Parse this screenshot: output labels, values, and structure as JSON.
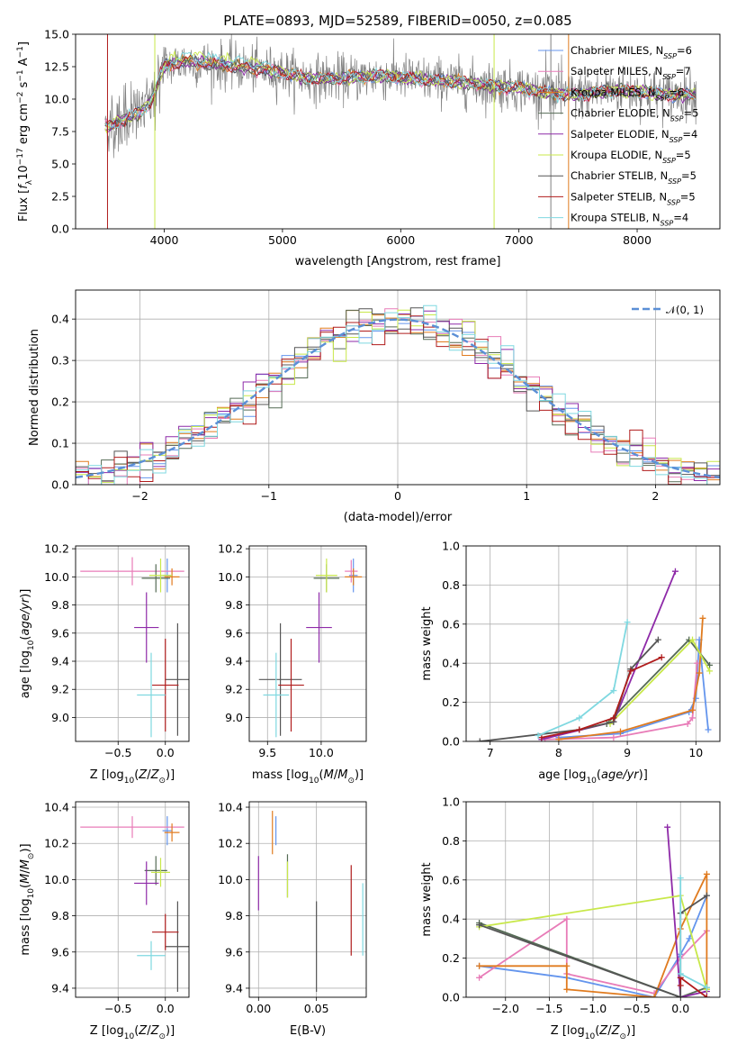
{
  "figure_title": "PLATE=0893, MJD=52589, FIBERID=0050, z=0.085",
  "colors": {
    "Chabrier MILES": "#6495ed",
    "Salpeter MILES": "#e87cb8",
    "Kroupa MILES": "#e07b1f",
    "Chabrier ELODIE": "#556b55",
    "Salpeter ELODIE": "#8e2aa8",
    "Kroupa ELODIE": "#c8e84a",
    "Chabrier STELIB": "#555555",
    "Salpeter STELIB": "#b01c1c",
    "Kroupa STELIB": "#7fd8e0",
    "data": "#808080",
    "normal": "#5b8fd6"
  },
  "chart_data": [
    {
      "id": "spectrum",
      "type": "line",
      "title": "PLATE=0893, MJD=52589, FIBERID=0050, z=0.085",
      "xlabel": "wavelength [Angstrom, rest frame]",
      "ylabel": "Flux [f_λ 10^-17 erg cm^-2 s^-1 A^-1]",
      "xlim": [
        3250,
        8700
      ],
      "ylim": [
        0,
        15
      ],
      "xticks": [
        "4000",
        "5000",
        "6000",
        "7000",
        "8000"
      ],
      "yticks": [
        "0.0",
        "2.5",
        "5.0",
        "7.5",
        "10.0",
        "12.5",
        "15.0"
      ],
      "legend_position": "right",
      "legend": [
        {
          "model": "Chabrier MILES",
          "label": "Chabrier MILES, N",
          "nssp": "=6"
        },
        {
          "model": "Salpeter MILES",
          "label": "Salpeter MILES, N",
          "nssp": "=7"
        },
        {
          "model": "Kroupa MILES",
          "label": "Kroupa MILES, N",
          "nssp": "=6"
        },
        {
          "model": "Chabrier ELODIE",
          "label": "Chabrier ELODIE, N",
          "nssp": "=5"
        },
        {
          "model": "Salpeter ELODIE",
          "label": "Salpeter ELODIE, N",
          "nssp": "=4"
        },
        {
          "model": "Kroupa ELODIE",
          "label": "Kroupa ELODIE, N",
          "nssp": "=5"
        },
        {
          "model": "Chabrier STELIB",
          "label": "Chabrier STELIB, N",
          "nssp": "=5"
        },
        {
          "model": "Salpeter STELIB",
          "label": "Salpeter STELIB, N",
          "nssp": "=5"
        },
        {
          "model": "Kroupa STELIB",
          "label": "Kroupa STELIB, N",
          "nssp": "=4"
        }
      ],
      "continuum_points": [
        [
          3500,
          7.8
        ],
        [
          3600,
          8.2
        ],
        [
          3700,
          8.6
        ],
        [
          3800,
          9.0
        ],
        [
          3900,
          10.0
        ],
        [
          4000,
          12.6
        ],
        [
          4200,
          12.9
        ],
        [
          4500,
          12.6
        ],
        [
          4800,
          12.3
        ],
        [
          5000,
          12.1
        ],
        [
          5200,
          11.6
        ],
        [
          5500,
          11.6
        ],
        [
          5800,
          11.8
        ],
        [
          6000,
          11.7
        ],
        [
          6200,
          11.5
        ],
        [
          6500,
          11.3
        ],
        [
          6800,
          11.0
        ],
        [
          7000,
          10.9
        ],
        [
          7200,
          10.5
        ],
        [
          7500,
          10.3
        ],
        [
          7800,
          10.7
        ],
        [
          8000,
          10.6
        ],
        [
          8300,
          10.3
        ],
        [
          8500,
          10.4
        ]
      ]
    },
    {
      "id": "residuals",
      "type": "histogram",
      "xlabel": "(data-model)/error",
      "ylabel": "Normed distribution",
      "xlim": [
        -2.5,
        2.5
      ],
      "ylim": [
        0,
        0.47
      ],
      "xticks": [
        "−2",
        "−1",
        "0",
        "1",
        "2"
      ],
      "yticks": [
        "0.0",
        "0.1",
        "0.2",
        "0.3",
        "0.4"
      ],
      "legend": [
        {
          "label": "𝒩(0, 1)",
          "style": "dashed"
        }
      ],
      "legend_position": "top-right",
      "bin_width": 0.1
    },
    {
      "id": "age_vs_Z",
      "type": "errorbar",
      "xlabel": "Z [log10(Z/Z⊙)]",
      "ylabel": "age  [log10(age/yr)]",
      "xlim": [
        -0.95,
        0.25
      ],
      "ylim": [
        8.83,
        10.22
      ],
      "xticks": [
        "−0.5",
        "0.0"
      ],
      "yticks": [
        "9.0",
        "9.2",
        "9.4",
        "9.6",
        "9.8",
        "10.0",
        "10.2"
      ],
      "points": [
        {
          "model": "Chabrier MILES",
          "x": 0.02,
          "y": 10.01,
          "xerr": 0.05,
          "yerr": 0.12
        },
        {
          "model": "Salpeter MILES",
          "x": -0.35,
          "y": 10.04,
          "xerr": 0.55,
          "yerr": 0.1
        },
        {
          "model": "Kroupa MILES",
          "x": 0.07,
          "y": 10.0,
          "xerr": 0.08,
          "yerr": 0.06
        },
        {
          "model": "Chabrier ELODIE",
          "x": -0.1,
          "y": 9.99,
          "xerr": 0.15,
          "yerr": 0.1
        },
        {
          "model": "Salpeter ELODIE",
          "x": -0.2,
          "y": 9.64,
          "xerr": 0.13,
          "yerr": 0.25
        },
        {
          "model": "Kroupa ELODIE",
          "x": -0.05,
          "y": 10.01,
          "xerr": 0.12,
          "yerr": 0.12
        },
        {
          "model": "Chabrier STELIB",
          "x": 0.13,
          "y": 9.27,
          "xerr": 0.13,
          "yerr": 0.4
        },
        {
          "model": "Salpeter STELIB",
          "x": 0.0,
          "y": 9.23,
          "xerr": 0.14,
          "yerr": 0.33
        },
        {
          "model": "Kroupa STELIB",
          "x": -0.15,
          "y": 9.16,
          "xerr": 0.15,
          "yerr": 0.3
        }
      ]
    },
    {
      "id": "age_vs_mass",
      "type": "errorbar",
      "xlabel": "mass [log10(M/M⊙)]",
      "ylabel": "",
      "xlim": [
        9.33,
        10.42
      ],
      "ylim": [
        8.83,
        10.22
      ],
      "xticks": [
        "9.5",
        "10.0"
      ],
      "yticks": [
        "9.0",
        "9.2",
        "9.4",
        "9.6",
        "9.8",
        "10.0",
        "10.2"
      ],
      "points": [
        {
          "model": "Chabrier MILES",
          "x": 10.3,
          "y": 10.01,
          "xerr": 0.04,
          "yerr": 0.12
        },
        {
          "model": "Salpeter MILES",
          "x": 10.28,
          "y": 10.04,
          "xerr": 0.06,
          "yerr": 0.08
        },
        {
          "model": "Kroupa MILES",
          "x": 10.3,
          "y": 10.0,
          "xerr": 0.08,
          "yerr": 0.06
        },
        {
          "model": "Chabrier ELODIE",
          "x": 10.05,
          "y": 9.99,
          "xerr": 0.12,
          "yerr": 0.1
        },
        {
          "model": "Salpeter ELODIE",
          "x": 9.98,
          "y": 9.64,
          "xerr": 0.12,
          "yerr": 0.25
        },
        {
          "model": "Kroupa ELODIE",
          "x": 10.05,
          "y": 10.01,
          "xerr": 0.1,
          "yerr": 0.12
        },
        {
          "model": "Chabrier STELIB",
          "x": 9.62,
          "y": 9.27,
          "xerr": 0.2,
          "yerr": 0.4
        },
        {
          "model": "Salpeter STELIB",
          "x": 9.72,
          "y": 9.23,
          "xerr": 0.12,
          "yerr": 0.33
        },
        {
          "model": "Kroupa STELIB",
          "x": 9.58,
          "y": 9.16,
          "xerr": 0.12,
          "yerr": 0.3
        }
      ]
    },
    {
      "id": "weight_vs_age",
      "type": "line",
      "xlabel": "age  [log10(age/yr)]",
      "ylabel": "mass weight",
      "xlim": [
        6.65,
        10.35
      ],
      "ylim": [
        0,
        1.0
      ],
      "xticks": [
        "7",
        "8",
        "9",
        "10"
      ],
      "yticks": [
        "0.0",
        "0.2",
        "0.4",
        "0.6",
        "0.8",
        "1.0"
      ],
      "series": [
        {
          "model": "Chabrier MILES",
          "x": [
            8.0,
            8.9,
            9.9,
            10.0,
            10.05,
            10.18
          ],
          "y": [
            0.02,
            0.04,
            0.15,
            0.22,
            0.52,
            0.06
          ]
        },
        {
          "model": "Salpeter MILES",
          "x": [
            7.8,
            8.8,
            9.88,
            9.95,
            10.02
          ],
          "y": [
            0.01,
            0.02,
            0.09,
            0.12,
            0.4
          ]
        },
        {
          "model": "Kroupa MILES",
          "x": [
            8.0,
            8.9,
            9.95,
            10.05,
            10.1
          ],
          "y": [
            0.01,
            0.05,
            0.16,
            0.35,
            0.63
          ]
        },
        {
          "model": "Chabrier ELODIE",
          "x": [
            8.7,
            9.9,
            10.2
          ],
          "y": [
            0.09,
            0.52,
            0.39
          ]
        },
        {
          "model": "Salpeter ELODIE",
          "x": [
            7.75,
            8.8,
            9.7
          ],
          "y": [
            0.01,
            0.1,
            0.87
          ]
        },
        {
          "model": "Kroupa ELODIE",
          "x": [
            8.75,
            9.95,
            10.2
          ],
          "y": [
            0.09,
            0.52,
            0.36
          ]
        },
        {
          "model": "Chabrier STELIB",
          "x": [
            6.85,
            8.3,
            8.8,
            9.05,
            9.45
          ],
          "y": [
            0.0,
            0.06,
            0.1,
            0.37,
            0.52
          ]
        },
        {
          "model": "Salpeter STELIB",
          "x": [
            7.75,
            8.3,
            8.8,
            9.05,
            9.5
          ],
          "y": [
            0.02,
            0.06,
            0.12,
            0.36,
            0.43
          ]
        },
        {
          "model": "Kroupa STELIB",
          "x": [
            7.7,
            8.3,
            8.8,
            9.0
          ],
          "y": [
            0.03,
            0.12,
            0.26,
            0.61
          ]
        }
      ]
    },
    {
      "id": "mass_vs_Z",
      "type": "errorbar",
      "xlabel": "Z [log10(Z/Z⊙)]",
      "ylabel": "mass [log10(M/M⊙)]",
      "xlim": [
        -0.95,
        0.25
      ],
      "ylim": [
        9.35,
        10.43
      ],
      "xticks": [
        "−0.5",
        "0.0"
      ],
      "yticks": [
        "9.4",
        "9.6",
        "9.8",
        "10.0",
        "10.2",
        "10.4"
      ],
      "points": [
        {
          "model": "Chabrier MILES",
          "x": 0.02,
          "y": 10.27,
          "xerr": 0.05,
          "yerr": 0.08
        },
        {
          "model": "Salpeter MILES",
          "x": -0.35,
          "y": 10.29,
          "xerr": 0.55,
          "yerr": 0.06
        },
        {
          "model": "Kroupa MILES",
          "x": 0.07,
          "y": 10.26,
          "xerr": 0.08,
          "yerr": 0.05
        },
        {
          "model": "Chabrier ELODIE",
          "x": -0.1,
          "y": 10.05,
          "xerr": 0.12,
          "yerr": 0.08
        },
        {
          "model": "Salpeter ELODIE",
          "x": -0.2,
          "y": 9.98,
          "xerr": 0.13,
          "yerr": 0.12
        },
        {
          "model": "Kroupa ELODIE",
          "x": -0.05,
          "y": 10.04,
          "xerr": 0.1,
          "yerr": 0.08
        },
        {
          "model": "Chabrier STELIB",
          "x": 0.13,
          "y": 9.63,
          "xerr": 0.13,
          "yerr": 0.25
        },
        {
          "model": "Salpeter STELIB",
          "x": 0.0,
          "y": 9.71,
          "xerr": 0.14,
          "yerr": 0.1
        },
        {
          "model": "Kroupa STELIB",
          "x": -0.15,
          "y": 9.58,
          "xerr": 0.15,
          "yerr": 0.08
        }
      ]
    },
    {
      "id": "mass_vs_ebv",
      "type": "errorbar",
      "xlabel": "E(B-V)",
      "ylabel": "",
      "xlim": [
        -0.008,
        0.093
      ],
      "ylim": [
        9.35,
        10.43
      ],
      "xticks": [
        "0.00",
        "0.05"
      ],
      "yticks": [
        "9.4",
        "9.6",
        "9.8",
        "10.0",
        "10.2",
        "10.4"
      ],
      "points": [
        {
          "model": "Chabrier MILES",
          "x": 0.015,
          "y": 10.27,
          "xerr": 0,
          "yerr": 0.08
        },
        {
          "model": "Kroupa MILES",
          "x": 0.012,
          "y": 10.26,
          "xerr": 0,
          "yerr": 0.12
        },
        {
          "model": "Chabrier ELODIE",
          "x": 0.025,
          "y": 10.02,
          "xerr": 0,
          "yerr": 0.12
        },
        {
          "model": "Salpeter ELODIE",
          "x": 0.0,
          "y": 9.98,
          "xerr": 0,
          "yerr": 0.15
        },
        {
          "model": "Kroupa ELODIE",
          "x": 0.025,
          "y": 10.0,
          "xerr": 0,
          "yerr": 0.1
        },
        {
          "model": "Chabrier STELIB",
          "x": 0.05,
          "y": 9.63,
          "xerr": 0,
          "yerr": 0.25
        },
        {
          "model": "Salpeter STELIB",
          "x": 0.08,
          "y": 9.83,
          "xerr": 0,
          "yerr": 0.25
        },
        {
          "model": "Kroupa STELIB",
          "x": 0.09,
          "y": 9.78,
          "xerr": 0,
          "yerr": 0.2
        }
      ]
    },
    {
      "id": "weight_vs_Z",
      "type": "line",
      "xlabel": "Z [log10(Z/Z⊙)]",
      "ylabel": "mass weight",
      "xlim": [
        -2.45,
        0.45
      ],
      "ylim": [
        0,
        1.0
      ],
      "xticks": [
        "−2.0",
        "−1.5",
        "−1.0",
        "−0.5",
        "0.0"
      ],
      "yticks": [
        "0.0",
        "0.2",
        "0.4",
        "0.6",
        "0.8",
        "1.0"
      ],
      "series": [
        {
          "model": "Chabrier MILES",
          "x": [
            -2.3,
            -1.3,
            -0.3,
            0.0,
            0.1,
            0.3
          ],
          "y": [
            0.16,
            0.1,
            0.0,
            0.22,
            0.3,
            0.52
          ]
        },
        {
          "model": "Salpeter MILES",
          "x": [
            -2.3,
            -1.3,
            -1.3,
            -0.3,
            0.0,
            0.3
          ],
          "y": [
            0.1,
            0.4,
            0.12,
            0.02,
            0.2,
            0.34
          ]
        },
        {
          "model": "Kroupa MILES",
          "x": [
            -2.3,
            -1.3,
            -1.3,
            -0.3,
            0.0,
            0.3,
            0.3
          ],
          "y": [
            0.16,
            0.16,
            0.04,
            0.0,
            0.35,
            0.63,
            0.04
          ]
        },
        {
          "model": "Chabrier ELODIE",
          "x": [
            -2.3,
            0.0,
            0.3
          ],
          "y": [
            0.38,
            0.0,
            0.05
          ]
        },
        {
          "model": "Salpeter ELODIE",
          "x": [
            -0.15,
            0.0,
            0.3
          ],
          "y": [
            0.87,
            0.0,
            0.03
          ]
        },
        {
          "model": "Kroupa ELODIE",
          "x": [
            -2.3,
            0.0,
            0.3
          ],
          "y": [
            0.36,
            0.52,
            0.04
          ]
        },
        {
          "model": "Chabrier STELIB",
          "x": [
            -2.3,
            0.0,
            0.0,
            0.3
          ],
          "y": [
            0.37,
            0.0,
            0.43,
            0.52
          ]
        },
        {
          "model": "Salpeter STELIB",
          "x": [
            0.0,
            0.0,
            0.3
          ],
          "y": [
            0.06,
            0.1,
            0.0
          ]
        },
        {
          "model": "Kroupa STELIB",
          "x": [
            0.0,
            0.0,
            0.3
          ],
          "y": [
            0.61,
            0.12,
            0.05
          ]
        }
      ]
    }
  ]
}
